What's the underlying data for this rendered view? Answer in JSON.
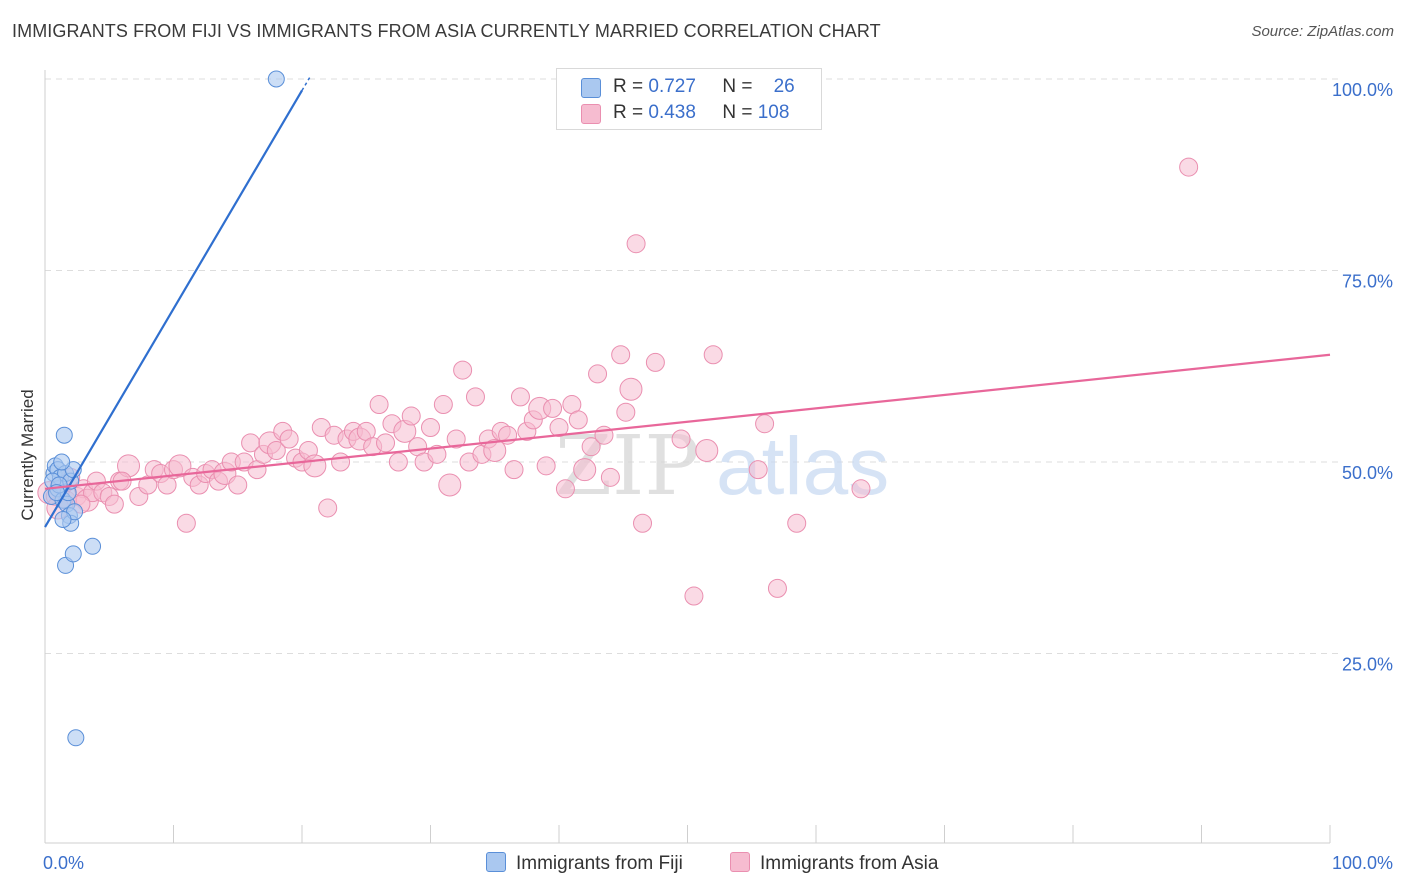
{
  "title": "IMMIGRANTS FROM FIJI VS IMMIGRANTS FROM ASIA CURRENTLY MARRIED CORRELATION CHART",
  "source": "Source: ZipAtlas.com",
  "watermark": {
    "zip": "ZIP",
    "atlas": "atlas"
  },
  "legend": {
    "series1": {
      "r_label": "R =",
      "r_value": "0.727",
      "n_label": "N =",
      "n_value": "26"
    },
    "series2": {
      "r_label": "R =",
      "r_value": "0.438",
      "n_label": "N =",
      "n_value": "108"
    }
  },
  "colors": {
    "fiji_fill": "#aac8f0",
    "fiji_stroke": "#5a8fd8",
    "fiji_line": "#2f6fcf",
    "asia_fill": "#f6bcd0",
    "asia_stroke": "#ea8fb0",
    "asia_line": "#e8679a",
    "tick_label": "#3b6fcb",
    "grid": "#dddddd"
  },
  "chart_data": {
    "type": "scatter",
    "title": "IMMIGRANTS FROM FIJI VS IMMIGRANTS FROM ASIA CURRENTLY MARRIED CORRELATION CHART",
    "xlabel": "",
    "ylabel": "Currently Married",
    "xlim": [
      0,
      100
    ],
    "ylim": [
      0,
      102
    ],
    "x_tick_labels": [
      "0.0%",
      "100.0%"
    ],
    "y_ticks": [
      25,
      50,
      75,
      100
    ],
    "y_tick_labels": [
      "25.0%",
      "50.0%",
      "75.0%",
      "100.0%"
    ],
    "legend_position": "bottom",
    "series": [
      {
        "name": "Immigrants from Fiji",
        "r": 0.727,
        "n": 26,
        "trend": {
          "x": [
            0,
            20
          ],
          "y": [
            41.5,
            98.5
          ]
        },
        "points": [
          [
            0.5,
            45.5
          ],
          [
            0.7,
            48.5
          ],
          [
            0.8,
            49.5
          ],
          [
            1.0,
            49.0
          ],
          [
            1.0,
            46.5
          ],
          [
            1.2,
            48.0
          ],
          [
            1.4,
            45.0
          ],
          [
            1.5,
            53.5
          ],
          [
            1.6,
            48.5
          ],
          [
            1.7,
            44.5
          ],
          [
            1.8,
            46.0
          ],
          [
            1.9,
            43.0
          ],
          [
            2.0,
            47.5
          ],
          [
            2.0,
            42.0
          ],
          [
            2.2,
            49.0
          ],
          [
            2.3,
            43.5
          ],
          [
            1.4,
            42.5
          ],
          [
            1.6,
            36.5
          ],
          [
            2.2,
            38.0
          ],
          [
            3.7,
            39.0
          ],
          [
            2.4,
            14.0
          ],
          [
            18.0,
            100.0
          ],
          [
            0.6,
            47.5
          ],
          [
            1.1,
            47.0
          ],
          [
            1.3,
            50.0
          ],
          [
            0.9,
            46.0
          ]
        ]
      },
      {
        "name": "Immigrants from Asia",
        "r": 0.438,
        "n": 108,
        "trend": {
          "x": [
            0,
            100
          ],
          "y": [
            46.5,
            64.0
          ]
        },
        "points": [
          [
            0.3,
            46.0
          ],
          [
            0.8,
            45.5
          ],
          [
            1.3,
            47.0
          ],
          [
            1.7,
            45.0
          ],
          [
            2.0,
            48.0
          ],
          [
            2.5,
            45.5
          ],
          [
            3.0,
            46.5
          ],
          [
            3.3,
            45.0
          ],
          [
            3.7,
            46.0
          ],
          [
            4.0,
            47.5
          ],
          [
            4.5,
            46.0
          ],
          [
            5.0,
            45.5
          ],
          [
            5.4,
            44.5
          ],
          [
            5.8,
            47.5
          ],
          [
            6.5,
            49.5
          ],
          [
            7.3,
            45.5
          ],
          [
            8.0,
            47.0
          ],
          [
            8.5,
            49.0
          ],
          [
            9.0,
            48.5
          ],
          [
            9.5,
            47.0
          ],
          [
            10.0,
            49.0
          ],
          [
            10.5,
            49.5
          ],
          [
            11.0,
            42.0
          ],
          [
            11.5,
            48.0
          ],
          [
            12.0,
            47.0
          ],
          [
            12.5,
            48.5
          ],
          [
            13.0,
            49.0
          ],
          [
            13.5,
            47.5
          ],
          [
            14.0,
            48.5
          ],
          [
            14.5,
            50.0
          ],
          [
            15.0,
            47.0
          ],
          [
            15.5,
            50.0
          ],
          [
            16.0,
            52.5
          ],
          [
            16.5,
            49.0
          ],
          [
            17.0,
            51.0
          ],
          [
            17.5,
            52.5
          ],
          [
            18.0,
            51.5
          ],
          [
            18.5,
            54.0
          ],
          [
            19.0,
            53.0
          ],
          [
            19.5,
            50.5
          ],
          [
            20.0,
            50.0
          ],
          [
            20.5,
            51.5
          ],
          [
            21.0,
            49.5
          ],
          [
            21.5,
            54.5
          ],
          [
            22.0,
            44.0
          ],
          [
            22.5,
            53.5
          ],
          [
            23.0,
            50.0
          ],
          [
            23.5,
            53.0
          ],
          [
            24.0,
            54.0
          ],
          [
            24.5,
            53.0
          ],
          [
            25.0,
            54.0
          ],
          [
            25.5,
            52.0
          ],
          [
            26.0,
            57.5
          ],
          [
            26.5,
            52.5
          ],
          [
            27.0,
            55.0
          ],
          [
            27.5,
            50.0
          ],
          [
            28.0,
            54.0
          ],
          [
            28.5,
            56.0
          ],
          [
            29.0,
            52.0
          ],
          [
            29.5,
            50.0
          ],
          [
            30.0,
            54.5
          ],
          [
            30.5,
            51.0
          ],
          [
            31.0,
            57.5
          ],
          [
            31.5,
            47.0
          ],
          [
            32.0,
            53.0
          ],
          [
            32.5,
            62.0
          ],
          [
            33.0,
            50.0
          ],
          [
            33.5,
            58.5
          ],
          [
            34.0,
            51.0
          ],
          [
            34.5,
            53.0
          ],
          [
            35.0,
            51.5
          ],
          [
            35.5,
            54.0
          ],
          [
            36.0,
            53.5
          ],
          [
            36.5,
            49.0
          ],
          [
            37.0,
            58.5
          ],
          [
            37.5,
            54.0
          ],
          [
            38.0,
            55.5
          ],
          [
            38.5,
            57.0
          ],
          [
            39.0,
            49.5
          ],
          [
            39.5,
            57.0
          ],
          [
            40.0,
            54.5
          ],
          [
            40.5,
            46.5
          ],
          [
            41.0,
            57.5
          ],
          [
            41.5,
            55.5
          ],
          [
            42.0,
            49.0
          ],
          [
            42.5,
            52.0
          ],
          [
            43.0,
            61.5
          ],
          [
            43.5,
            53.5
          ],
          [
            44.0,
            48.0
          ],
          [
            44.8,
            64.0
          ],
          [
            45.2,
            56.5
          ],
          [
            45.6,
            59.5
          ],
          [
            46.0,
            78.5
          ],
          [
            46.5,
            42.0
          ],
          [
            47.5,
            63.0
          ],
          [
            52.0,
            64.0
          ],
          [
            49.5,
            53.0
          ],
          [
            50.5,
            32.5
          ],
          [
            51.5,
            51.5
          ],
          [
            55.5,
            49.0
          ],
          [
            56.0,
            55.0
          ],
          [
            57.0,
            33.5
          ],
          [
            58.5,
            42.0
          ],
          [
            63.5,
            46.5
          ],
          [
            89.0,
            88.5
          ],
          [
            1.0,
            44.0
          ],
          [
            2.8,
            44.5
          ],
          [
            6.0,
            47.5
          ]
        ]
      }
    ]
  },
  "bottom_legend": [
    "Immigrants from Fiji",
    "Immigrants from Asia"
  ]
}
